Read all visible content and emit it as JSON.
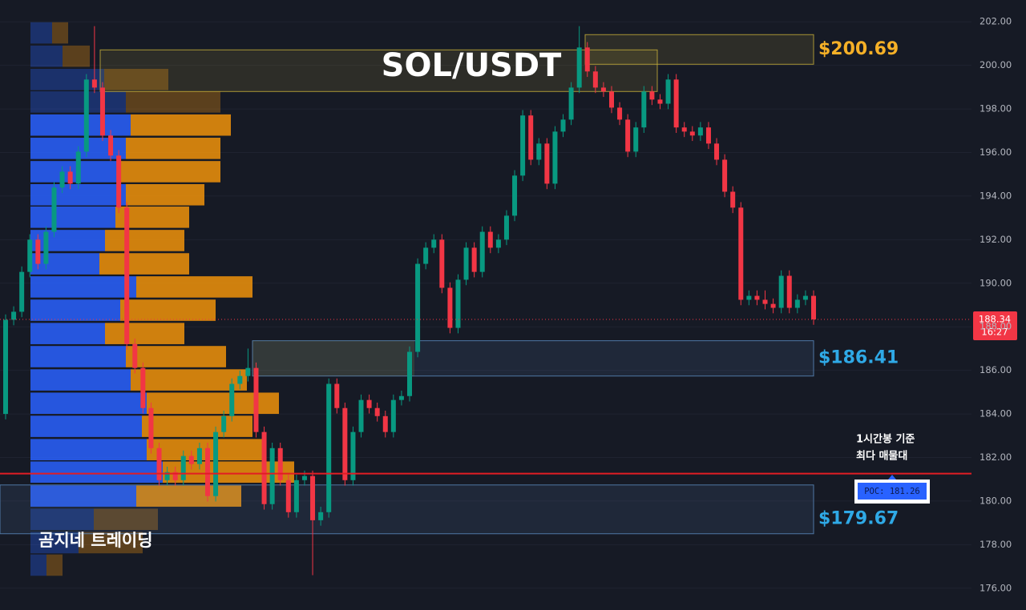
{
  "chart_data": {
    "type": "candlestick",
    "title": "SOL/USDT",
    "watermark": "곰지네 트레이딩",
    "up_color": "#089981",
    "down_color": "#f23645",
    "ylim": [
      175,
      203
    ],
    "yticks": [
      {
        "value": 176,
        "label": "176.00"
      },
      {
        "value": 178,
        "label": "178.00"
      },
      {
        "value": 180,
        "label": "180.00"
      },
      {
        "value": 182,
        "label": "182.00"
      },
      {
        "value": 184,
        "label": "184.00"
      },
      {
        "value": 186,
        "label": "186.00"
      },
      {
        "value": 188,
        "label": "188.00"
      },
      {
        "value": 190,
        "label": "190.00"
      },
      {
        "value": 192,
        "label": "192.00"
      },
      {
        "value": 194,
        "label": "194.00"
      },
      {
        "value": 196,
        "label": "196.00"
      },
      {
        "value": 198,
        "label": "198.00"
      },
      {
        "value": 200,
        "label": "200.00"
      },
      {
        "value": 202,
        "label": "202.00"
      }
    ],
    "grid": true,
    "open": [
      184.0,
      188.32,
      188.69,
      190.52,
      192.0,
      190.89,
      192.36,
      194.39,
      195.12,
      194.57,
      196.04,
      199.35,
      198.98,
      196.78,
      195.86,
      193.47,
      187.21,
      186.11,
      184.27,
      182.43,
      180.96,
      181.33,
      180.96,
      182.07,
      181.7,
      182.43,
      180.23,
      183.17,
      183.9,
      185.38,
      185.74,
      186.11,
      183.17,
      179.86,
      182.43,
      180.96,
      179.49,
      180.96,
      181.15,
      179.12,
      179.49,
      185.38,
      184.27,
      180.96,
      183.17,
      184.64,
      184.27,
      183.9,
      183.17,
      184.64,
      184.82,
      186.85,
      190.89,
      191.63,
      192.0,
      189.79,
      187.95,
      190.16,
      191.63,
      190.52,
      192.36,
      191.63,
      192.0,
      193.1,
      194.94,
      197.7,
      195.67,
      196.41,
      194.57,
      196.96,
      197.51,
      198.98,
      200.82,
      199.72,
      198.98,
      198.8,
      198.06,
      197.51,
      196.04,
      197.15,
      198.8,
      198.43,
      198.24,
      199.35,
      197.15,
      196.96,
      196.78,
      197.15,
      196.41,
      195.67,
      194.2,
      193.47,
      189.24,
      189.42,
      189.24,
      189.05,
      188.87,
      190.34,
      188.87,
      189.24,
      189.42
    ],
    "high": [
      188.57,
      188.94,
      190.77,
      192.25,
      192.25,
      192.61,
      194.64,
      195.37,
      195.37,
      196.29,
      199.6,
      201.8,
      199.23,
      197.03,
      196.11,
      193.72,
      187.46,
      186.36,
      184.52,
      182.68,
      181.58,
      181.58,
      182.32,
      182.32,
      182.68,
      182.68,
      183.42,
      184.15,
      185.63,
      185.99,
      187.0,
      186.36,
      183.42,
      182.68,
      182.68,
      181.21,
      181.21,
      181.4,
      181.4,
      179.74,
      185.63,
      185.63,
      184.52,
      183.42,
      184.89,
      184.89,
      184.52,
      184.15,
      184.89,
      185.07,
      187.1,
      191.14,
      191.88,
      192.25,
      192.25,
      190.04,
      190.41,
      191.88,
      191.88,
      192.61,
      192.61,
      192.25,
      193.35,
      195.19,
      197.95,
      197.95,
      196.66,
      196.66,
      197.21,
      197.76,
      199.23,
      201.8,
      201.07,
      199.97,
      199.23,
      199.05,
      198.31,
      197.76,
      197.4,
      199.05,
      199.05,
      198.68,
      199.6,
      199.6,
      197.4,
      197.21,
      197.4,
      197.4,
      196.66,
      195.92,
      194.45,
      193.72,
      189.67,
      189.67,
      189.67,
      189.3,
      190.59,
      190.59,
      189.49,
      189.67,
      189.67
    ],
    "low": [
      183.75,
      188.07,
      188.44,
      190.27,
      190.64,
      190.64,
      192.11,
      194.14,
      194.32,
      194.32,
      195.79,
      198.73,
      196.53,
      195.61,
      193.22,
      186.96,
      185.86,
      184.02,
      182.18,
      180.71,
      180.71,
      180.71,
      180.71,
      181.45,
      181.45,
      179.98,
      179.98,
      182.92,
      183.65,
      185.13,
      185.49,
      182.92,
      179.61,
      179.61,
      180.71,
      179.24,
      179.24,
      180.71,
      176.6,
      178.87,
      179.24,
      184.02,
      180.71,
      180.71,
      182.92,
      184.02,
      183.65,
      182.92,
      182.92,
      184.39,
      184.57,
      186.6,
      190.64,
      191.38,
      189.54,
      187.7,
      187.7,
      189.91,
      190.27,
      190.27,
      191.38,
      191.38,
      191.75,
      192.85,
      194.69,
      195.42,
      195.42,
      194.32,
      194.32,
      196.71,
      197.26,
      198.73,
      199.47,
      198.73,
      198.55,
      197.81,
      197.26,
      195.79,
      195.79,
      196.9,
      198.18,
      197.99,
      197.99,
      196.9,
      196.71,
      196.53,
      196.53,
      196.16,
      195.42,
      193.95,
      193.22,
      188.99,
      188.99,
      188.99,
      188.8,
      188.62,
      188.62,
      188.62,
      188.62,
      188.99,
      188.09
    ],
    "close": [
      188.32,
      188.69,
      190.52,
      192.0,
      190.89,
      192.36,
      194.39,
      195.12,
      194.57,
      196.04,
      199.35,
      198.98,
      196.78,
      195.86,
      193.47,
      187.21,
      186.11,
      184.27,
      182.43,
      180.96,
      181.33,
      180.96,
      182.07,
      181.7,
      182.43,
      180.23,
      183.17,
      183.9,
      185.38,
      185.74,
      186.11,
      183.17,
      179.86,
      182.43,
      180.96,
      179.49,
      180.96,
      181.15,
      179.12,
      179.49,
      185.38,
      184.27,
      180.96,
      183.17,
      184.64,
      184.27,
      183.9,
      183.17,
      184.64,
      184.82,
      186.85,
      190.89,
      191.63,
      192.0,
      189.79,
      187.95,
      190.16,
      191.63,
      190.52,
      192.36,
      191.63,
      192.0,
      193.1,
      194.94,
      197.7,
      195.67,
      196.41,
      194.57,
      196.96,
      197.51,
      198.98,
      200.82,
      199.72,
      198.98,
      198.8,
      198.06,
      197.51,
      196.04,
      197.15,
      198.8,
      198.43,
      198.24,
      199.35,
      197.15,
      196.96,
      196.78,
      197.15,
      196.41,
      195.67,
      194.2,
      193.47,
      189.24,
      189.42,
      189.24,
      189.05,
      188.87,
      190.34,
      188.87,
      189.24,
      189.42,
      188.34
    ],
    "volume_profile": {
      "price_levels": [
        177.06,
        178.09,
        179.16,
        180.23,
        181.33,
        182.36,
        183.43,
        184.49,
        185.56,
        186.63,
        187.69,
        188.76,
        189.83,
        190.89,
        191.96,
        193.03,
        194.06,
        195.12,
        196.19,
        197.26,
        198.32,
        199.35,
        200.42,
        201.49
      ],
      "value_area": [
        179.7,
        197.8
      ],
      "series": [
        {
          "color": "#2962ff",
          "values": [
            20,
            60,
            79,
            132,
            165,
            145,
            139,
            145,
            125,
            119,
            93,
            112,
            132,
            86,
            93,
            106,
            119,
            112,
            119,
            125,
            119,
            92,
            40,
            27
          ]
        },
        {
          "color": "#f0930b",
          "values": [
            20,
            80,
            80,
            131,
            164,
            145,
            138,
            165,
            145,
            125,
            99,
            119,
            145,
            112,
            99,
            92,
            98,
            125,
            118,
            125,
            118,
            80,
            34,
            20
          ]
        }
      ]
    },
    "zones": [
      {
        "top": 201.41,
        "bottom": 200.05,
        "color": "#c9b23a",
        "label": "$200.69",
        "label_color": "#f5b027"
      },
      {
        "top": 200.71,
        "bottom": 198.8,
        "color": "#c9b23a"
      },
      {
        "top": 187.36,
        "bottom": 185.74,
        "color": "#5b8cc2",
        "label": "$186.41",
        "label_color": "#2fa9e6"
      },
      {
        "top": 180.74,
        "bottom": 178.5,
        "color": "#5b8cc2",
        "label": "$179.67",
        "label_color": "#2fa9e6"
      }
    ],
    "poc": {
      "value": 181.26,
      "label": "POC: 181.26",
      "color": "#e11d24",
      "note": [
        "1시간봉 기준",
        "최다 매물대"
      ]
    },
    "last_price": {
      "value": 188.34,
      "label": "188.34",
      "time": "16:27",
      "color": "#f23645"
    }
  }
}
